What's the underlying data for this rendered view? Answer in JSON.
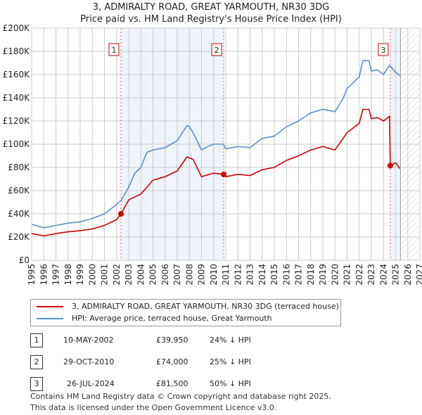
{
  "chart_data": {
    "type": "line",
    "title": "3, ADMIRALTY ROAD, GREAT YARMOUTH, NR30 3DG",
    "subtitle": "Price paid vs. HM Land Registry's House Price Index (HPI)",
    "xlim": [
      1995,
      2027
    ],
    "ylim": [
      0,
      200000
    ],
    "x_ticks": [
      "1995",
      "1996",
      "1997",
      "1998",
      "1999",
      "2000",
      "2001",
      "2002",
      "2003",
      "2004",
      "2005",
      "2006",
      "2007",
      "2008",
      "2009",
      "2010",
      "2011",
      "2012",
      "2013",
      "2014",
      "2015",
      "2016",
      "2017",
      "2018",
      "2019",
      "2020",
      "2021",
      "2022",
      "2023",
      "2024",
      "2025",
      "2026",
      "2027"
    ],
    "y_ticks": [
      {
        "v": 0,
        "label": "£0"
      },
      {
        "v": 20000,
        "label": "£20K"
      },
      {
        "v": 40000,
        "label": "£40K"
      },
      {
        "v": 60000,
        "label": "£60K"
      },
      {
        "v": 80000,
        "label": "£80K"
      },
      {
        "v": 100000,
        "label": "£100K"
      },
      {
        "v": 120000,
        "label": "£120K"
      },
      {
        "v": 140000,
        "label": "£140K"
      },
      {
        "v": 160000,
        "label": "£160K"
      },
      {
        "v": 180000,
        "label": "£180K"
      },
      {
        "v": 200000,
        "label": "£200K"
      }
    ],
    "series": [
      {
        "name": "3, ADMIRALTY ROAD, GREAT YARMOUTH, NR30 3DG (terraced house)",
        "color": "#cc0000",
        "x": [
          1995,
          1996,
          1997,
          1998,
          1999,
          2000,
          2001,
          2002,
          2002.36,
          2003,
          2004,
          2005,
          2006,
          2007,
          2007.8,
          2008.3,
          2009,
          2010,
          2010.83,
          2011,
          2012,
          2013,
          2014,
          2015,
          2016,
          2017,
          2018,
          2019,
          2020,
          2021,
          2022,
          2022.3,
          2022.8,
          2023,
          2023.5,
          2024,
          2024.5,
          2024.56,
          2025,
          2025.35
        ],
        "y": [
          23000,
          21000,
          23000,
          24500,
          25500,
          27000,
          30000,
          35000,
          39950,
          52000,
          57000,
          69000,
          72000,
          77000,
          89000,
          87000,
          72000,
          75000,
          74000,
          72000,
          74000,
          73000,
          78000,
          80000,
          86000,
          90000,
          95000,
          98000,
          95000,
          110000,
          118000,
          130000,
          130000,
          122000,
          123000,
          120000,
          124000,
          81500,
          84000,
          79000
        ]
      },
      {
        "name": "HPI: Average price, terraced house, Great Yarmouth",
        "color": "#5b8fd0",
        "x": [
          1995,
          1996,
          1997,
          1998,
          1999,
          2000,
          2001,
          2002,
          2002.4,
          2003,
          2003.5,
          2004,
          2004.5,
          2005,
          2006,
          2007,
          2007.8,
          2008,
          2008.3,
          2009,
          2009.5,
          2010,
          2010.8,
          2011,
          2012,
          2013,
          2014,
          2015,
          2016,
          2017,
          2018,
          2019,
          2020,
          2020.7,
          2021,
          2022,
          2022.3,
          2022.8,
          2023,
          2023.5,
          2024,
          2024.5,
          2025,
          2025.35
        ],
        "y": [
          31000,
          28000,
          30000,
          32000,
          33000,
          36000,
          40000,
          48000,
          52000,
          63000,
          75000,
          80000,
          93000,
          95000,
          97000,
          103000,
          116000,
          115000,
          110000,
          95000,
          98000,
          100000,
          100000,
          96000,
          98000,
          97000,
          105000,
          107000,
          115000,
          120000,
          127000,
          130000,
          128000,
          140000,
          148000,
          158000,
          172000,
          172000,
          163000,
          164000,
          160000,
          168000,
          162000,
          159000
        ]
      }
    ],
    "sales": [
      {
        "n": "1",
        "date": "10-MAY-2002",
        "price": "£39,950",
        "hpi": "24% ↓ HPI",
        "x": 2002.36,
        "y": 39950
      },
      {
        "n": "2",
        "date": "29-OCT-2010",
        "price": "£74,000",
        "hpi": "25% ↓ HPI",
        "x": 2010.83,
        "y": 74000
      },
      {
        "n": "3",
        "date": "26-JUL-2024",
        "price": "£81,500",
        "hpi": "50% ↓ HPI",
        "x": 2024.56,
        "y": 81500
      }
    ],
    "data_end": 2025.4
  },
  "footer": [
    "Contains HM Land Registry data © Crown copyright and database right 2025.",
    "This data is licensed under the Open Government Licence v3.0."
  ]
}
